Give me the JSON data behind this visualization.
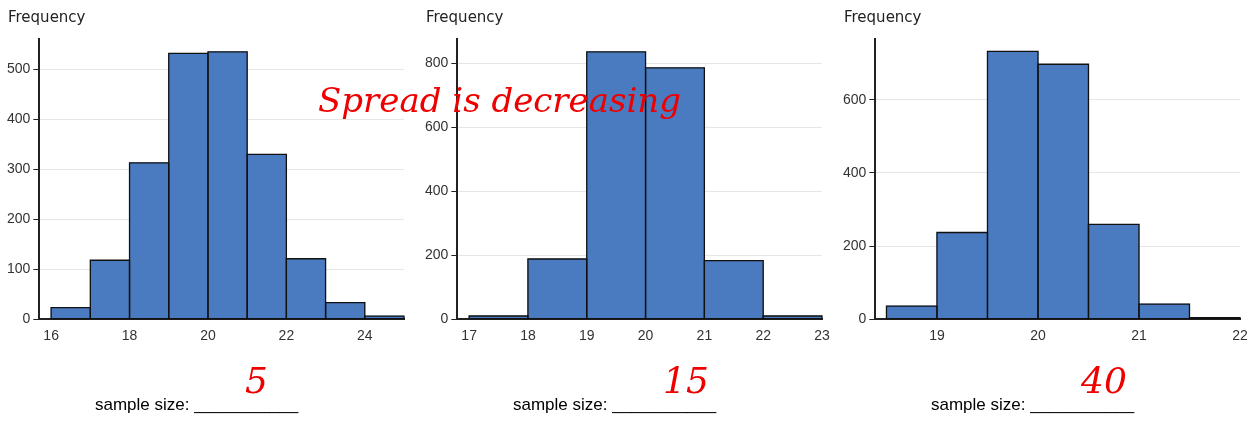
{
  "chart_data": [
    {
      "type": "histogram",
      "ylabel": "Frequency",
      "bins": [
        16,
        17,
        18,
        19,
        20,
        21,
        22,
        23,
        24,
        25
      ],
      "values": [
        23,
        118,
        313,
        532,
        535,
        330,
        121,
        33,
        6
      ],
      "color": "#4a7abf",
      "xlim": [
        15.7,
        25
      ],
      "xticks": [
        16,
        18,
        20,
        22,
        24
      ],
      "ylim": [
        0,
        560
      ],
      "yticks": [
        0,
        100,
        200,
        300,
        400,
        500
      ],
      "grid": "y",
      "annotations": [
        "sample size:  ___________",
        "5"
      ]
    },
    {
      "type": "histogram",
      "ylabel": "Frequency",
      "bins": [
        17,
        18,
        19,
        20,
        21,
        22,
        23
      ],
      "values": [
        10,
        188,
        835,
        785,
        183,
        10
      ],
      "color": "#4a7abf",
      "xlim": [
        16.8,
        23
      ],
      "xticks": [
        17,
        18,
        19,
        20,
        21,
        22,
        23
      ],
      "ylim": [
        0,
        874
      ],
      "yticks": [
        0,
        200,
        400,
        600,
        800
      ],
      "grid": "y",
      "annotations": [
        "sample size:  ___________",
        "15",
        "Spread is decreasing"
      ]
    },
    {
      "type": "histogram",
      "ylabel": "Frequency",
      "bins": [
        18.5,
        19,
        19.5,
        20,
        20.5,
        21,
        21.5,
        22
      ],
      "values": [
        36,
        237,
        732,
        697,
        259,
        41,
        4
      ],
      "color": "#4a7abf",
      "xlim": [
        18.39,
        22
      ],
      "xticks": [
        19,
        20,
        21,
        22
      ],
      "ylim": [
        0,
        765
      ],
      "yticks": [
        0,
        200,
        400,
        600
      ],
      "grid": "y",
      "annotations": [
        "sample size:  ___________",
        "40"
      ]
    }
  ]
}
